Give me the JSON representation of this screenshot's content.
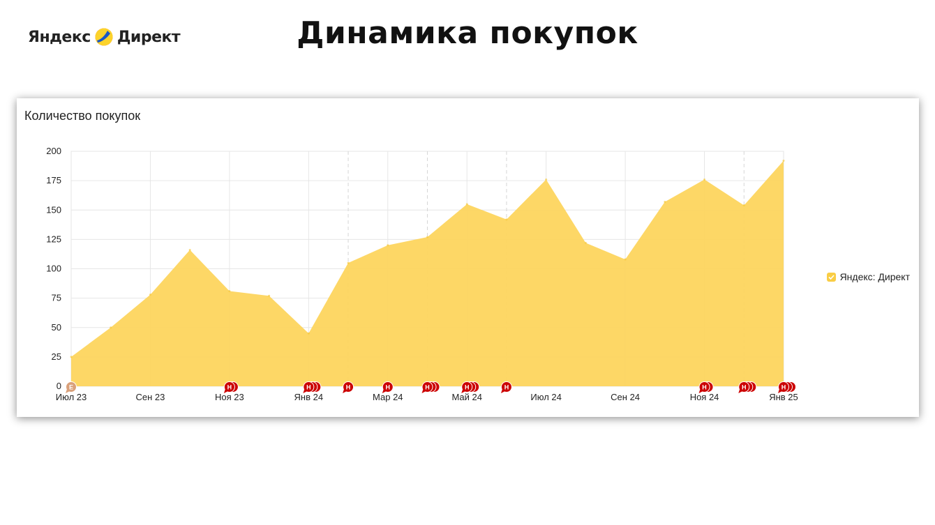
{
  "header": {
    "logo_text": "Яндекс Директ",
    "title": "Динамика покупок"
  },
  "chart_data": {
    "type": "area",
    "title": "Количество покупок",
    "xlabel": "",
    "ylabel": "",
    "ylim": [
      0,
      200
    ],
    "y_ticks": [
      0,
      25,
      50,
      75,
      100,
      125,
      150,
      175,
      200
    ],
    "x_tick_labels": [
      "Июл 23",
      "Сен 23",
      "Ноя 23",
      "Янв 24",
      "Мар 24",
      "Май 24",
      "Июл 24",
      "Сен 24",
      "Ноя 24",
      "Янв 25"
    ],
    "series": [
      {
        "name": "Яндекс: Директ",
        "color": "#fdd55e",
        "x": [
          "2023-07",
          "2023-08",
          "2023-09",
          "2023-10",
          "2023-11",
          "2023-12",
          "2024-01",
          "2024-02",
          "2024-03",
          "2024-04",
          "2024-05",
          "2024-06",
          "2024-07",
          "2024-08",
          "2024-09",
          "2024-10",
          "2024-11",
          "2024-12",
          "2025-01"
        ],
        "values": [
          25,
          50,
          78,
          116,
          81,
          77,
          45,
          105,
          120,
          127,
          155,
          142,
          176,
          122,
          108,
          157,
          176,
          154,
          192
        ]
      }
    ],
    "annotations": [
      {
        "month": "2023-07",
        "letter": "Е",
        "count": 1,
        "color": "#d9a07a"
      },
      {
        "month": "2023-11",
        "letter": "Н",
        "count": 2,
        "color": "#cc0000"
      },
      {
        "month": "2024-01",
        "letter": "Н",
        "count": 3,
        "color": "#cc0000"
      },
      {
        "month": "2024-02",
        "letter": "Н",
        "count": 1,
        "color": "#cc0000"
      },
      {
        "month": "2024-03",
        "letter": "Н",
        "count": 1,
        "color": "#cc0000"
      },
      {
        "month": "2024-04",
        "letter": "Н",
        "count": 3,
        "color": "#cc0000"
      },
      {
        "month": "2024-05",
        "letter": "Н",
        "count": 3,
        "color": "#cc0000"
      },
      {
        "month": "2024-06",
        "letter": "Н",
        "count": 1,
        "color": "#cc0000"
      },
      {
        "month": "2024-11",
        "letter": "Н",
        "count": 2,
        "color": "#cc0000"
      },
      {
        "month": "2024-12",
        "letter": "Н",
        "count": 3,
        "color": "#cc0000"
      },
      {
        "month": "2025-01",
        "letter": "Н",
        "count": 3,
        "color": "#cc0000"
      }
    ],
    "dashed_gridline_months": [
      "2024-02",
      "2024-04",
      "2024-06",
      "2024-12"
    ],
    "grid": true,
    "legend_position": "right"
  },
  "legend": {
    "label": "Яндекс: Директ"
  }
}
